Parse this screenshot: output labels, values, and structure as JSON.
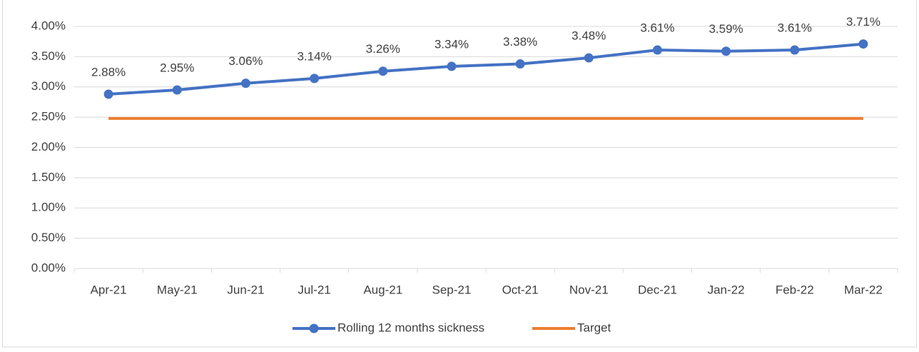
{
  "chart_data": {
    "type": "line",
    "categories": [
      "Apr-21",
      "May-21",
      "Jun-21",
      "Jul-21",
      "Aug-21",
      "Sep-21",
      "Oct-21",
      "Nov-21",
      "Dec-21",
      "Jan-22",
      "Feb-22",
      "Mar-22"
    ],
    "series": [
      {
        "name": "Rolling 12 months sickness",
        "color": "#4472c4",
        "marker": true,
        "values": [
          2.88,
          2.95,
          3.06,
          3.14,
          3.26,
          3.34,
          3.38,
          3.48,
          3.61,
          3.59,
          3.61,
          3.71
        ],
        "value_labels": [
          "2.88%",
          "2.95%",
          "3.06%",
          "3.14%",
          "3.26%",
          "3.34%",
          "3.38%",
          "3.48%",
          "3.61%",
          "3.59%",
          "3.61%",
          "3.71%"
        ]
      },
      {
        "name": "Target",
        "color": "#ed7d31",
        "marker": false,
        "values": [
          2.48,
          2.48,
          2.48,
          2.48,
          2.48,
          2.48,
          2.48,
          2.48,
          2.48,
          2.48,
          2.48,
          2.48
        ]
      }
    ],
    "ylim": [
      0,
      4
    ],
    "yticks": [
      {
        "value": 0,
        "label": "0.00%"
      },
      {
        "value": 0.5,
        "label": "0.50%"
      },
      {
        "value": 1,
        "label": "1.00%"
      },
      {
        "value": 1.5,
        "label": "1.50%"
      },
      {
        "value": 2,
        "label": "2.00%"
      },
      {
        "value": 2.5,
        "label": "2.50%"
      },
      {
        "value": 3,
        "label": "3.00%"
      },
      {
        "value": 3.5,
        "label": "3.50%"
      },
      {
        "value": 4,
        "label": "4.00%"
      }
    ],
    "grid": true,
    "legend": "bottom"
  }
}
